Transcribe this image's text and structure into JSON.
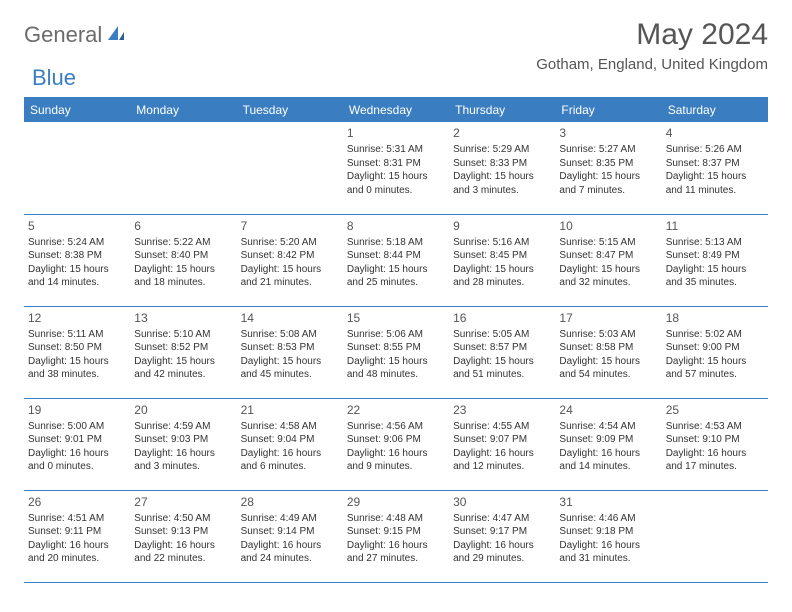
{
  "logo": {
    "part1": "General",
    "part2": "Blue"
  },
  "title": "May 2024",
  "location": "Gotham, England, United Kingdom",
  "dayHeaders": [
    "Sunday",
    "Monday",
    "Tuesday",
    "Wednesday",
    "Thursday",
    "Friday",
    "Saturday"
  ],
  "colors": {
    "accent": "#3a7ec1",
    "headerText": "#ffffff",
    "bodyText": "#333333",
    "mutedText": "#555555",
    "logoGray": "#6b6b6b",
    "background": "#ffffff"
  },
  "typography": {
    "titleSize": 30,
    "locationSize": 15,
    "headerSize": 12,
    "dayNumSize": 12,
    "cellSize": 10
  },
  "weeks": [
    [
      null,
      null,
      null,
      {
        "n": "1",
        "sr": "5:31 AM",
        "ss": "8:31 PM",
        "dl1": "15 hours",
        "dl2": "and 0 minutes."
      },
      {
        "n": "2",
        "sr": "5:29 AM",
        "ss": "8:33 PM",
        "dl1": "15 hours",
        "dl2": "and 3 minutes."
      },
      {
        "n": "3",
        "sr": "5:27 AM",
        "ss": "8:35 PM",
        "dl1": "15 hours",
        "dl2": "and 7 minutes."
      },
      {
        "n": "4",
        "sr": "5:26 AM",
        "ss": "8:37 PM",
        "dl1": "15 hours",
        "dl2": "and 11 minutes."
      }
    ],
    [
      {
        "n": "5",
        "sr": "5:24 AM",
        "ss": "8:38 PM",
        "dl1": "15 hours",
        "dl2": "and 14 minutes."
      },
      {
        "n": "6",
        "sr": "5:22 AM",
        "ss": "8:40 PM",
        "dl1": "15 hours",
        "dl2": "and 18 minutes."
      },
      {
        "n": "7",
        "sr": "5:20 AM",
        "ss": "8:42 PM",
        "dl1": "15 hours",
        "dl2": "and 21 minutes."
      },
      {
        "n": "8",
        "sr": "5:18 AM",
        "ss": "8:44 PM",
        "dl1": "15 hours",
        "dl2": "and 25 minutes."
      },
      {
        "n": "9",
        "sr": "5:16 AM",
        "ss": "8:45 PM",
        "dl1": "15 hours",
        "dl2": "and 28 minutes."
      },
      {
        "n": "10",
        "sr": "5:15 AM",
        "ss": "8:47 PM",
        "dl1": "15 hours",
        "dl2": "and 32 minutes."
      },
      {
        "n": "11",
        "sr": "5:13 AM",
        "ss": "8:49 PM",
        "dl1": "15 hours",
        "dl2": "and 35 minutes."
      }
    ],
    [
      {
        "n": "12",
        "sr": "5:11 AM",
        "ss": "8:50 PM",
        "dl1": "15 hours",
        "dl2": "and 38 minutes."
      },
      {
        "n": "13",
        "sr": "5:10 AM",
        "ss": "8:52 PM",
        "dl1": "15 hours",
        "dl2": "and 42 minutes."
      },
      {
        "n": "14",
        "sr": "5:08 AM",
        "ss": "8:53 PM",
        "dl1": "15 hours",
        "dl2": "and 45 minutes."
      },
      {
        "n": "15",
        "sr": "5:06 AM",
        "ss": "8:55 PM",
        "dl1": "15 hours",
        "dl2": "and 48 minutes."
      },
      {
        "n": "16",
        "sr": "5:05 AM",
        "ss": "8:57 PM",
        "dl1": "15 hours",
        "dl2": "and 51 minutes."
      },
      {
        "n": "17",
        "sr": "5:03 AM",
        "ss": "8:58 PM",
        "dl1": "15 hours",
        "dl2": "and 54 minutes."
      },
      {
        "n": "18",
        "sr": "5:02 AM",
        "ss": "9:00 PM",
        "dl1": "15 hours",
        "dl2": "and 57 minutes."
      }
    ],
    [
      {
        "n": "19",
        "sr": "5:00 AM",
        "ss": "9:01 PM",
        "dl1": "16 hours",
        "dl2": "and 0 minutes."
      },
      {
        "n": "20",
        "sr": "4:59 AM",
        "ss": "9:03 PM",
        "dl1": "16 hours",
        "dl2": "and 3 minutes."
      },
      {
        "n": "21",
        "sr": "4:58 AM",
        "ss": "9:04 PM",
        "dl1": "16 hours",
        "dl2": "and 6 minutes."
      },
      {
        "n": "22",
        "sr": "4:56 AM",
        "ss": "9:06 PM",
        "dl1": "16 hours",
        "dl2": "and 9 minutes."
      },
      {
        "n": "23",
        "sr": "4:55 AM",
        "ss": "9:07 PM",
        "dl1": "16 hours",
        "dl2": "and 12 minutes."
      },
      {
        "n": "24",
        "sr": "4:54 AM",
        "ss": "9:09 PM",
        "dl1": "16 hours",
        "dl2": "and 14 minutes."
      },
      {
        "n": "25",
        "sr": "4:53 AM",
        "ss": "9:10 PM",
        "dl1": "16 hours",
        "dl2": "and 17 minutes."
      }
    ],
    [
      {
        "n": "26",
        "sr": "4:51 AM",
        "ss": "9:11 PM",
        "dl1": "16 hours",
        "dl2": "and 20 minutes."
      },
      {
        "n": "27",
        "sr": "4:50 AM",
        "ss": "9:13 PM",
        "dl1": "16 hours",
        "dl2": "and 22 minutes."
      },
      {
        "n": "28",
        "sr": "4:49 AM",
        "ss": "9:14 PM",
        "dl1": "16 hours",
        "dl2": "and 24 minutes."
      },
      {
        "n": "29",
        "sr": "4:48 AM",
        "ss": "9:15 PM",
        "dl1": "16 hours",
        "dl2": "and 27 minutes."
      },
      {
        "n": "30",
        "sr": "4:47 AM",
        "ss": "9:17 PM",
        "dl1": "16 hours",
        "dl2": "and 29 minutes."
      },
      {
        "n": "31",
        "sr": "4:46 AM",
        "ss": "9:18 PM",
        "dl1": "16 hours",
        "dl2": "and 31 minutes."
      },
      null
    ]
  ]
}
